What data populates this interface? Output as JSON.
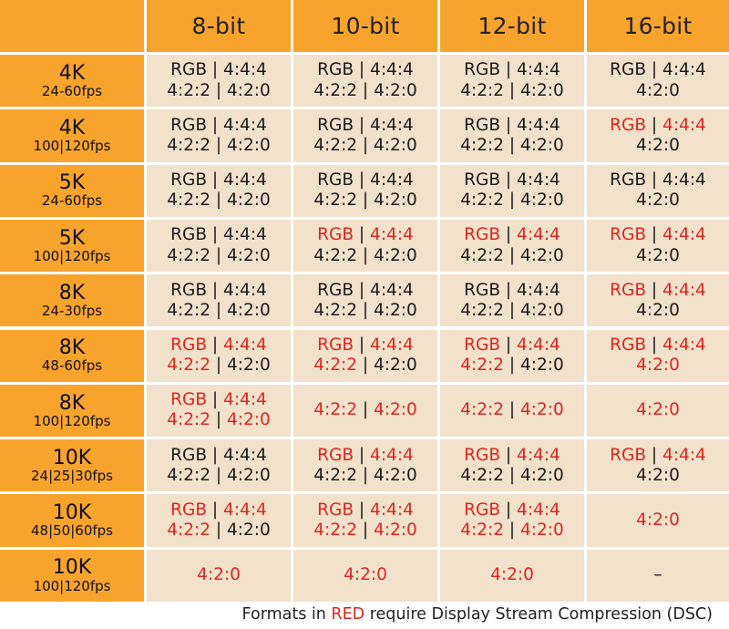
{
  "columns": [
    "8-bit",
    "10-bit",
    "12-bit",
    "16-bit"
  ],
  "rows": [
    {
      "res": "4K",
      "fps": "24-60fps",
      "cells": [
        [
          [
            [
              "RGB | 4:4:4",
              "b"
            ]
          ],
          [
            [
              "4:2:2 | 4:2:0",
              "b"
            ]
          ]
        ],
        [
          [
            [
              "RGB | 4:4:4",
              "b"
            ]
          ],
          [
            [
              "4:2:2 | 4:2:0",
              "b"
            ]
          ]
        ],
        [
          [
            [
              "RGB | 4:4:4",
              "b"
            ]
          ],
          [
            [
              "4:2:2 | 4:2:0",
              "b"
            ]
          ]
        ],
        [
          [
            [
              "RGB | 4:4:4",
              "b"
            ]
          ],
          [
            [
              "4:2:0",
              "b"
            ]
          ]
        ]
      ]
    },
    {
      "res": "4K",
      "fps": "100|120fps",
      "cells": [
        [
          [
            [
              "RGB | 4:4:4",
              "b"
            ]
          ],
          [
            [
              "4:2:2 | 4:2:0",
              "b"
            ]
          ]
        ],
        [
          [
            [
              "RGB | 4:4:4",
              "b"
            ]
          ],
          [
            [
              "4:2:2 | 4:2:0",
              "b"
            ]
          ]
        ],
        [
          [
            [
              "RGB | 4:4:4",
              "b"
            ]
          ],
          [
            [
              "4:2:2 | 4:2:0",
              "b"
            ]
          ]
        ],
        [
          [
            [
              "RGB",
              "r"
            ],
            [
              " | ",
              "b"
            ],
            [
              "4:4:4",
              "r"
            ]
          ],
          [
            [
              "4:2:0",
              "b"
            ]
          ]
        ]
      ]
    },
    {
      "res": "5K",
      "fps": "24-60fps",
      "cells": [
        [
          [
            [
              "RGB | 4:4:4",
              "b"
            ]
          ],
          [
            [
              "4:2:2 | 4:2:0",
              "b"
            ]
          ]
        ],
        [
          [
            [
              "RGB | 4:4:4",
              "b"
            ]
          ],
          [
            [
              "4:2:2 | 4:2:0",
              "b"
            ]
          ]
        ],
        [
          [
            [
              "RGB | 4:4:4",
              "b"
            ]
          ],
          [
            [
              "4:2:2 | 4:2:0",
              "b"
            ]
          ]
        ],
        [
          [
            [
              "RGB | 4:4:4",
              "b"
            ]
          ],
          [
            [
              "4:2:0",
              "b"
            ]
          ]
        ]
      ]
    },
    {
      "res": "5K",
      "fps": "100|120fps",
      "cells": [
        [
          [
            [
              "RGB | 4:4:4",
              "b"
            ]
          ],
          [
            [
              "4:2:2 | 4:2:0",
              "b"
            ]
          ]
        ],
        [
          [
            [
              "RGB",
              "r"
            ],
            [
              " | ",
              "b"
            ],
            [
              "4:4:4",
              "r"
            ]
          ],
          [
            [
              "4:2:2 | 4:2:0",
              "b"
            ]
          ]
        ],
        [
          [
            [
              "RGB",
              "r"
            ],
            [
              " | ",
              "b"
            ],
            [
              "4:4:4",
              "r"
            ]
          ],
          [
            [
              "4:2:2 | 4:2:0",
              "b"
            ]
          ]
        ],
        [
          [
            [
              "RGB",
              "r"
            ],
            [
              " | ",
              "b"
            ],
            [
              "4:4:4",
              "r"
            ]
          ],
          [
            [
              "4:2:0",
              "b"
            ]
          ]
        ]
      ]
    },
    {
      "res": "8K",
      "fps": "24-30fps",
      "cells": [
        [
          [
            [
              "RGB | 4:4:4",
              "b"
            ]
          ],
          [
            [
              "4:2:2 | 4:2:0",
              "b"
            ]
          ]
        ],
        [
          [
            [
              "RGB | 4:4:4",
              "b"
            ]
          ],
          [
            [
              "4:2:2 | 4:2:0",
              "b"
            ]
          ]
        ],
        [
          [
            [
              "RGB | 4:4:4",
              "b"
            ]
          ],
          [
            [
              "4:2:2 | 4:2:0",
              "b"
            ]
          ]
        ],
        [
          [
            [
              "RGB",
              "r"
            ],
            [
              " | ",
              "b"
            ],
            [
              "4:4:4",
              "r"
            ]
          ],
          [
            [
              "4:2:0",
              "b"
            ]
          ]
        ]
      ]
    },
    {
      "res": "8K",
      "fps": "48-60fps",
      "cells": [
        [
          [
            [
              "RGB",
              "r"
            ],
            [
              " | ",
              "b"
            ],
            [
              "4:4:4",
              "r"
            ]
          ],
          [
            [
              "4:2:2",
              "r"
            ],
            [
              " | 4:2:0",
              "b"
            ]
          ]
        ],
        [
          [
            [
              "RGB",
              "r"
            ],
            [
              " | ",
              "b"
            ],
            [
              "4:4:4",
              "r"
            ]
          ],
          [
            [
              "4:2:2",
              "r"
            ],
            [
              " | 4:2:0",
              "b"
            ]
          ]
        ],
        [
          [
            [
              "RGB",
              "r"
            ],
            [
              " | ",
              "b"
            ],
            [
              "4:4:4",
              "r"
            ]
          ],
          [
            [
              "4:2:2",
              "r"
            ],
            [
              " | 4:2:0",
              "b"
            ]
          ]
        ],
        [
          [
            [
              "RGB",
              "r"
            ],
            [
              " | ",
              "b"
            ],
            [
              "4:4:4",
              "r"
            ]
          ],
          [
            [
              "4:2:0",
              "r"
            ]
          ]
        ]
      ]
    },
    {
      "res": "8K",
      "fps": "100|120fps",
      "cells": [
        [
          [
            [
              "RGB",
              "r"
            ],
            [
              " | ",
              "b"
            ],
            [
              "4:4:4",
              "r"
            ]
          ],
          [
            [
              "4:2:2",
              "r"
            ],
            [
              " | ",
              "b"
            ],
            [
              "4:2:0",
              "r"
            ]
          ]
        ],
        [
          [
            [
              "4:2:2",
              "r"
            ],
            [
              " | ",
              "b"
            ],
            [
              "4:2:0",
              "r"
            ]
          ]
        ],
        [
          [
            [
              "4:2:2",
              "r"
            ],
            [
              " | ",
              "b"
            ],
            [
              "4:2:0",
              "r"
            ]
          ]
        ],
        [
          [
            [
              "4:2:0",
              "r"
            ]
          ]
        ]
      ]
    },
    {
      "res": "10K",
      "fps": "24|25|30fps",
      "cells": [
        [
          [
            [
              "RGB | 4:4:4",
              "b"
            ]
          ],
          [
            [
              "4:2:2 | 4:2:0",
              "b"
            ]
          ]
        ],
        [
          [
            [
              "RGB",
              "r"
            ],
            [
              " | ",
              "b"
            ],
            [
              "4:4:4",
              "r"
            ]
          ],
          [
            [
              "4:2:2 | 4:2:0",
              "b"
            ]
          ]
        ],
        [
          [
            [
              "RGB",
              "r"
            ],
            [
              " | ",
              "b"
            ],
            [
              "4:4:4",
              "r"
            ]
          ],
          [
            [
              "4:2:2 | 4:2:0",
              "b"
            ]
          ]
        ],
        [
          [
            [
              "RGB",
              "r"
            ],
            [
              " | ",
              "b"
            ],
            [
              "4:4:4",
              "r"
            ]
          ],
          [
            [
              "4:2:0",
              "b"
            ]
          ]
        ]
      ]
    },
    {
      "res": "10K",
      "fps": "48|50|60fps",
      "cells": [
        [
          [
            [
              "RGB",
              "r"
            ],
            [
              " | ",
              "b"
            ],
            [
              "4:4:4",
              "r"
            ]
          ],
          [
            [
              "4:2:2",
              "r"
            ],
            [
              " | 4:2:0",
              "b"
            ]
          ]
        ],
        [
          [
            [
              "RGB",
              "r"
            ],
            [
              " | ",
              "b"
            ],
            [
              "4:4:4",
              "r"
            ]
          ],
          [
            [
              "4:2:2",
              "r"
            ],
            [
              " | ",
              "b"
            ],
            [
              "4:2:0",
              "r"
            ]
          ]
        ],
        [
          [
            [
              "RGB",
              "r"
            ],
            [
              " | ",
              "b"
            ],
            [
              "4:4:4",
              "r"
            ]
          ],
          [
            [
              "4:2:2",
              "r"
            ],
            [
              " | ",
              "b"
            ],
            [
              "4:2:0",
              "r"
            ]
          ]
        ],
        [
          [
            [
              "4:2:0",
              "r"
            ]
          ]
        ]
      ]
    },
    {
      "res": "10K",
      "fps": "100|120fps",
      "cells": [
        [
          [
            [
              "4:2:0",
              "r"
            ]
          ]
        ],
        [
          [
            [
              "4:2:0",
              "r"
            ]
          ]
        ],
        [
          [
            [
              "4:2:0",
              "r"
            ]
          ]
        ],
        [
          [
            [
              "–",
              "b"
            ]
          ]
        ]
      ]
    }
  ],
  "footer": {
    "before": "Formats in ",
    "red_word": "RED",
    "after": " require Display Stream Compression (DSC)"
  },
  "colors": {
    "header_orange": "#f8a42c",
    "cell_beige": "#f2e1cb",
    "dsc_red": "#e0261f",
    "text": "#1b1b1b"
  }
}
